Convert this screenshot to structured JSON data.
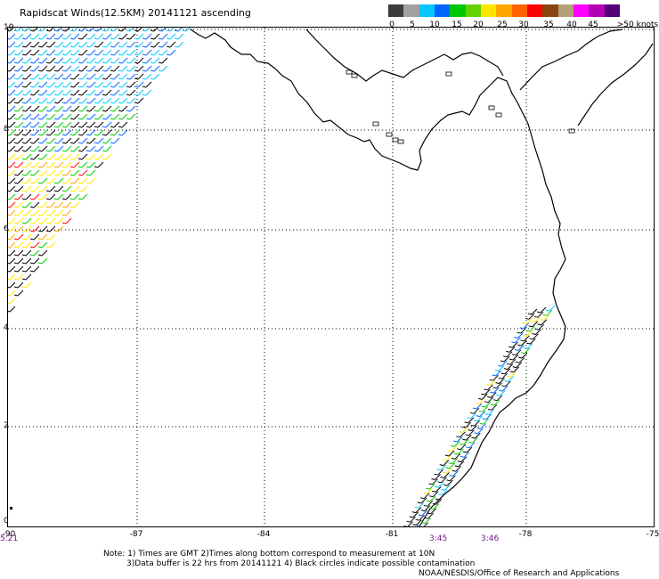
{
  "title": "Rapidscat Winds(12.5KM) 20141121 ascending",
  "legend": {
    "colors": [
      "#3c3c3c",
      "#a0a0a0",
      "#00c8ff",
      "#0064ff",
      "#00c800",
      "#64d200",
      "#ffe600",
      "#ffa500",
      "#ff6400",
      "#ff0000",
      "#8b4513",
      "#b4a078",
      "#ff00ff",
      "#b400b4",
      "#500078"
    ],
    "labels": [
      "0",
      "5",
      "10",
      "15",
      "20",
      "25",
      "30",
      "35",
      "40",
      "45",
      ">50 knots"
    ]
  },
  "axes": {
    "lat_labels": [
      "10",
      "8",
      "6",
      "4",
      "2",
      "0"
    ],
    "lon_labels": [
      "-90",
      "-87",
      "-84",
      "-81",
      "-78",
      "-75"
    ]
  },
  "time_labels": [
    "5:21",
    "3:45",
    "3:46"
  ],
  "notes": [
    "Note: 1) Times are GMT 2)Times along bottom correspond to measurement at 10N",
    "3)Data buffer is 22 hrs from 20141121 4) Black circles indicate possible contamination",
    "NOAA/NESDIS/Office of Research and Applications"
  ]
}
